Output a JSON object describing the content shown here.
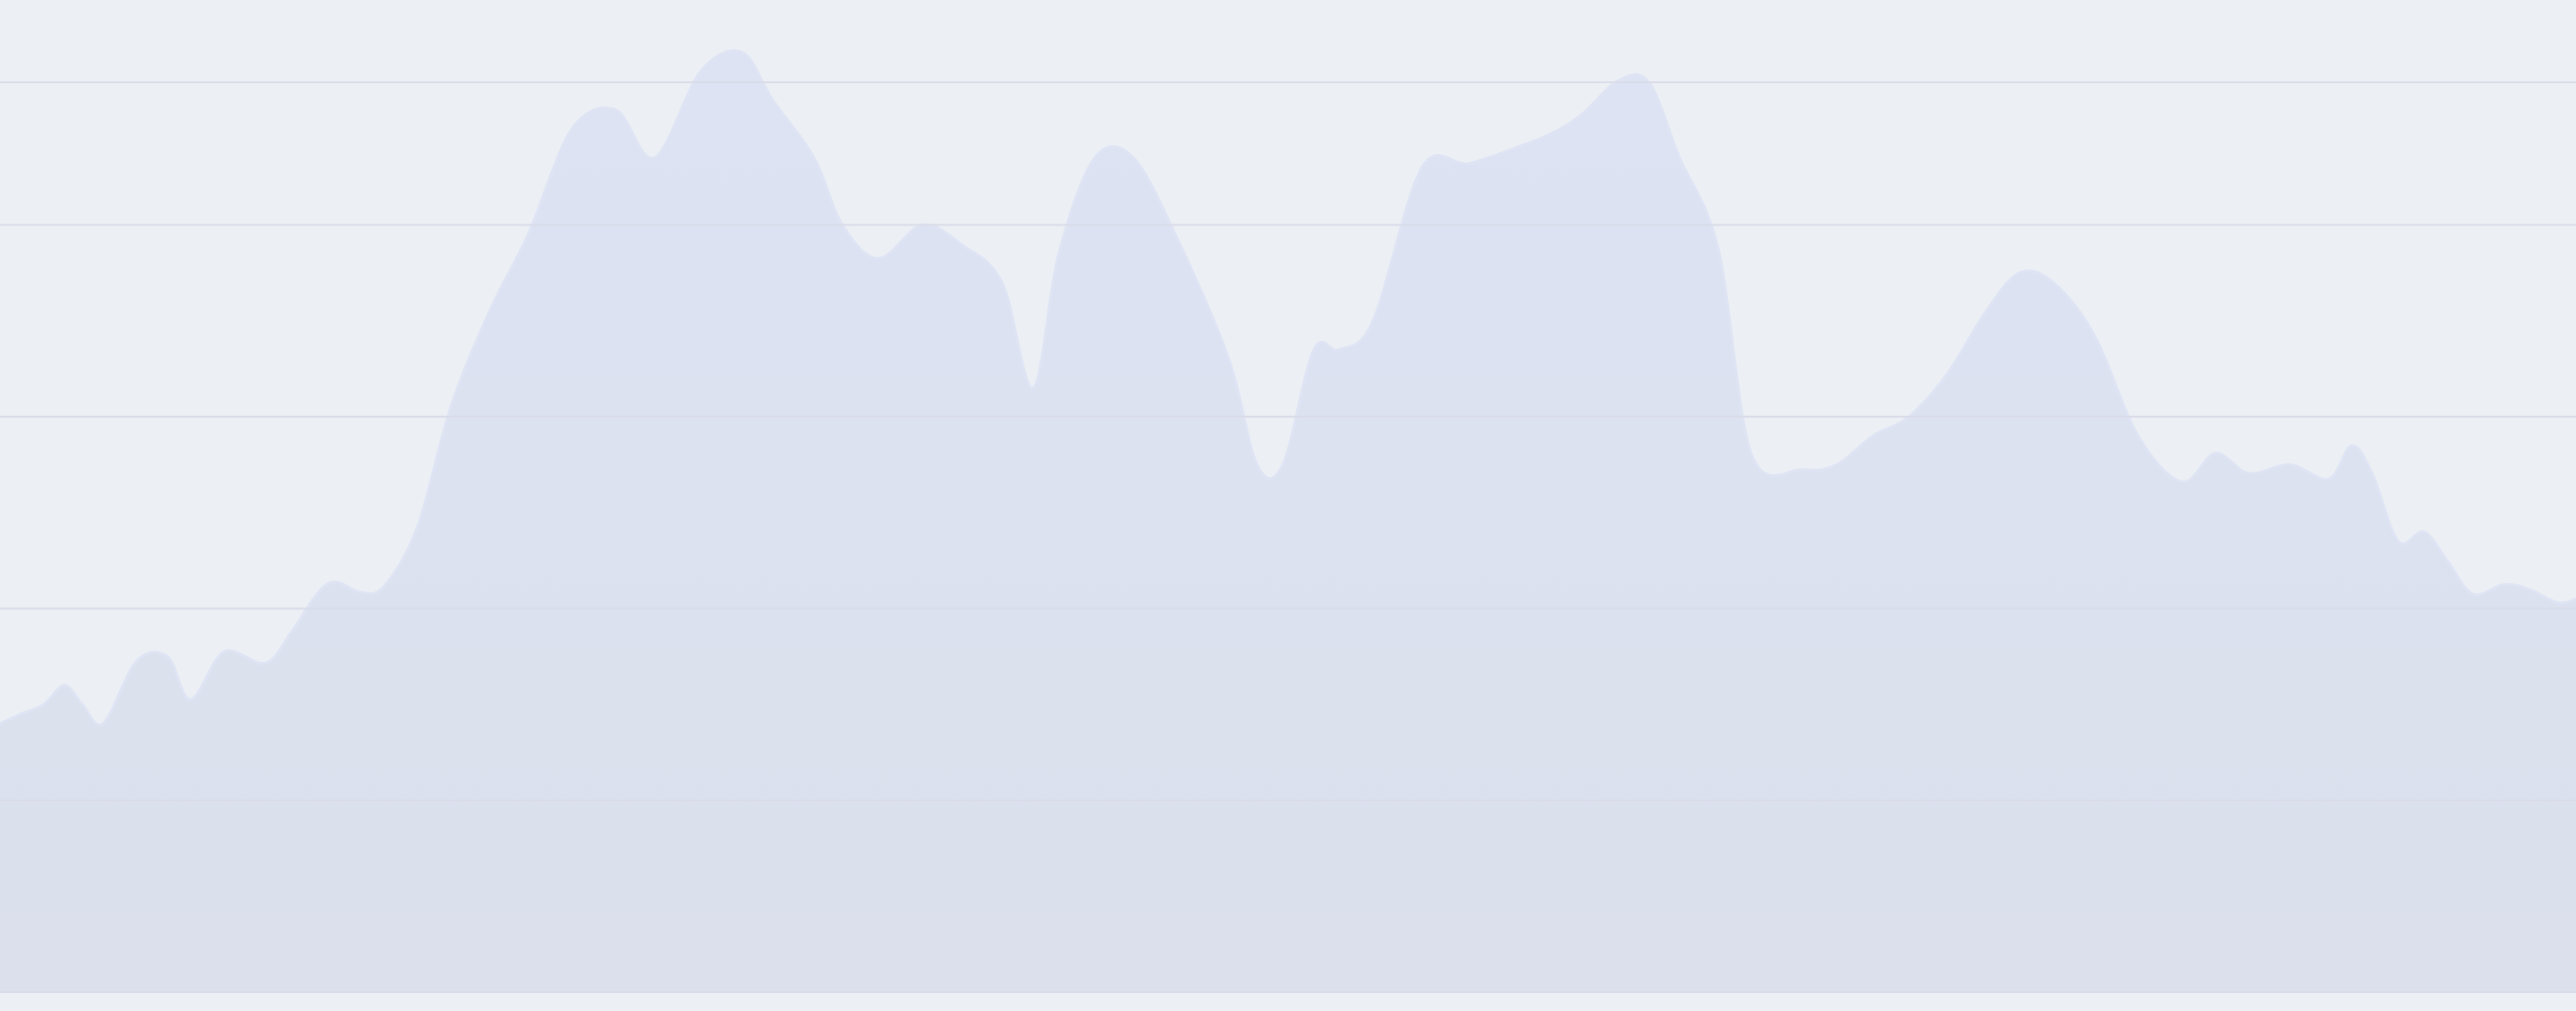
{
  "chart_data": {
    "type": "area",
    "title": "",
    "xlabel": "",
    "ylabel": "",
    "grid": true,
    "legend": "none",
    "xlim": [
      0,
      100
    ],
    "ylim": [
      0,
      100
    ],
    "gridlines_y": [
      0,
      20,
      40,
      60,
      80
    ],
    "colors": {
      "background": "#eceff4",
      "grid": "#d9dce8",
      "area_top": "#dde3f3",
      "area_bottom": "#dbe0ec",
      "stroke": "#dfe4f4"
    },
    "series": [
      {
        "x": [
          0,
          0.8,
          1.7,
          2.5,
          3.2,
          4,
          5.3,
          6.5,
          7.4,
          8.7,
          10.3,
          11.3,
          12.3,
          13,
          14,
          14.9,
          16.2,
          17.5,
          19,
          20.5,
          22.2,
          23.9,
          25.4,
          27.2,
          28.8,
          30,
          31.6,
          32.7,
          34.1,
          35.8,
          37.3,
          38.9,
          40.1,
          41.1,
          42.5,
          44,
          45.8,
          47.7,
          48.8,
          49.8,
          51,
          52,
          53.3,
          55.2,
          57,
          58.8,
          60.2,
          61.4,
          62.8,
          64,
          65.2,
          66.7,
          68,
          70,
          71.3,
          72.7,
          74.1,
          75.6,
          77.1,
          78.4,
          79.7,
          81.3,
          83,
          84.7,
          86,
          87.3,
          88.9,
          90.4,
          91.3,
          92.1,
          93.1,
          94.1,
          95,
          96,
          97.2,
          98.2,
          99.3,
          100
        ],
        "y": [
          28,
          29,
          30,
          32,
          30,
          28,
          34.5,
          35,
          30.5,
          35.5,
          34.3,
          37.5,
          41.5,
          42.8,
          41.7,
          42.3,
          48.5,
          61,
          71,
          79,
          90,
          92,
          87,
          96,
          98,
          93,
          87,
          80,
          76.5,
          80,
          78,
          74,
          63,
          77,
          87,
          87,
          78,
          66,
          55,
          55,
          67,
          67,
          70,
          86,
          86.4,
          88,
          89.5,
          91.5,
          95,
          94.9,
          87,
          77.5,
          56,
          54.5,
          55,
          58,
          60,
          64.5,
          71,
          75,
          74,
          68.5,
          58,
          53.2,
          56.2,
          54.1,
          55,
          53.5,
          57,
          54,
          47,
          48,
          45,
          41.5,
          42.5,
          42,
          40.6,
          41
        ]
      }
    ]
  }
}
